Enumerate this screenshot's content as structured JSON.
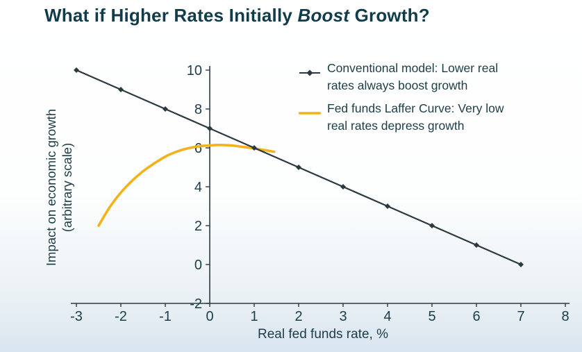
{
  "title": {
    "prefix": "What if Higher Rates Initially ",
    "emphasis": "Boost",
    "suffix": " Growth?"
  },
  "legend": {
    "items": [
      {
        "line1": "Conventional model: Lower real",
        "line2": "rates always boost growth",
        "color": "#2b3a41",
        "marker": "line-diamond"
      },
      {
        "line1": "Fed funds Laffer Curve: Very low",
        "line2": "real rates depress growth",
        "color": "#f3b21b",
        "marker": "line"
      }
    ]
  },
  "chart_data": {
    "type": "line",
    "title": "What if Higher Rates Initially Boost Growth?",
    "xlabel": "Real fed funds rate, %",
    "ylabel": "Impact on economic growth (arbitrary scale)",
    "ylabel_line1": "Impact on economic growth",
    "ylabel_line2": "(arbitrary scale)",
    "xlim": [
      -3,
      8
    ],
    "ylim": [
      -2,
      10
    ],
    "xticks": [
      -3,
      -2,
      -1,
      0,
      1,
      2,
      3,
      4,
      5,
      6,
      7,
      8
    ],
    "yticks": [
      -2,
      0,
      2,
      4,
      6,
      8,
      10
    ],
    "grid": false,
    "legend_position": "top-right",
    "axis_color": "#2b3a41",
    "text_color": "#1c3d47",
    "series": [
      {
        "name": "Fed funds Laffer Curve: Very low real rates depress growth",
        "color": "#f3b21b",
        "marker": "none",
        "smooth": true,
        "width": 3.6,
        "x": [
          -2.5,
          -2.25,
          -2,
          -1.75,
          -1.5,
          -1.25,
          -1,
          -0.75,
          -0.5,
          -0.25,
          0,
          0.25,
          0.5,
          0.75,
          1,
          1.25,
          1.45
        ],
        "y": [
          2.0,
          2.95,
          3.7,
          4.3,
          4.8,
          5.2,
          5.55,
          5.8,
          5.97,
          6.08,
          6.13,
          6.15,
          6.12,
          6.05,
          5.97,
          5.88,
          5.8
        ]
      },
      {
        "name": "Conventional model: Lower real rates always boost growth",
        "color": "#2b3a41",
        "marker": "diamond",
        "smooth": false,
        "width": 2.2,
        "x": [
          -3,
          -2,
          -1,
          0,
          1,
          2,
          3,
          4,
          5,
          6,
          7
        ],
        "y": [
          10,
          9,
          8,
          7,
          6,
          5,
          4,
          3,
          2,
          1,
          0
        ]
      }
    ]
  }
}
